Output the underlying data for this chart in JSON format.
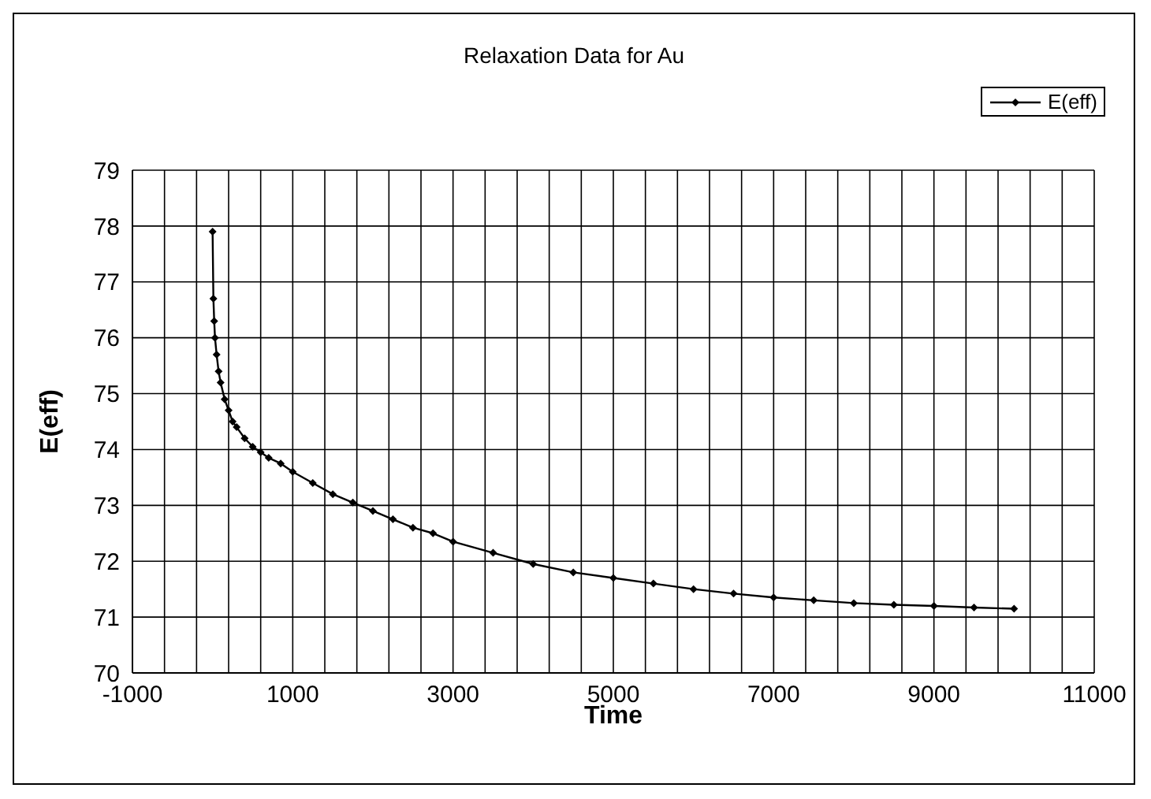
{
  "chart_data": {
    "type": "line",
    "title": "Relaxation Data for Au",
    "xlabel": "Time",
    "ylabel": "E(eff)",
    "x": [
      0,
      10,
      20,
      30,
      50,
      75,
      100,
      150,
      200,
      250,
      300,
      400,
      500,
      600,
      700,
      850,
      1000,
      1250,
      1500,
      1750,
      2000,
      2250,
      2500,
      2750,
      3000,
      3500,
      4000,
      4500,
      5000,
      5500,
      6000,
      6500,
      7000,
      7500,
      8000,
      8500,
      9000,
      9500,
      10000
    ],
    "series": [
      {
        "name": "E(eff)",
        "color": "#000000",
        "values": [
          77.9,
          76.7,
          76.3,
          76.0,
          75.7,
          75.4,
          75.2,
          74.9,
          74.7,
          74.5,
          74.4,
          74.2,
          74.05,
          73.95,
          73.85,
          73.75,
          73.6,
          73.4,
          73.2,
          73.05,
          72.9,
          72.75,
          72.6,
          72.5,
          72.35,
          72.15,
          71.95,
          71.8,
          71.7,
          71.6,
          71.5,
          71.42,
          71.35,
          71.3,
          71.25,
          71.22,
          71.2,
          71.17,
          71.15
        ]
      }
    ],
    "xlim": [
      -1000,
      11000
    ],
    "xticks": [
      -1000,
      {
        "value": -600,
        "label": null
      },
      {
        "value": -200,
        "label": null
      },
      {
        "value": 200,
        "label": null
      },
      {
        "value": 600,
        "label": null
      },
      1000,
      {
        "value": 1400,
        "label": null
      },
      {
        "value": 1800,
        "label": null
      },
      {
        "value": 2200,
        "label": null
      },
      {
        "value": 2600,
        "label": null
      },
      3000,
      {
        "value": 3400,
        "label": null
      },
      {
        "value": 3800,
        "label": null
      },
      {
        "value": 4200,
        "label": null
      },
      {
        "value": 4600,
        "label": null
      },
      5000,
      {
        "value": 5400,
        "label": null
      },
      {
        "value": 5800,
        "label": null
      },
      {
        "value": 6200,
        "label": null
      },
      {
        "value": 6600,
        "label": null
      },
      7000,
      {
        "value": 7400,
        "label": null
      },
      {
        "value": 7800,
        "label": null
      },
      {
        "value": 8200,
        "label": null
      },
      {
        "value": 8600,
        "label": null
      },
      9000,
      {
        "value": 9400,
        "label": null
      },
      {
        "value": 9800,
        "label": null
      },
      {
        "value": 10200,
        "label": null
      },
      {
        "value": 10600,
        "label": null
      },
      11000
    ],
    "ylim": [
      70,
      79
    ],
    "yticks": [
      70,
      71,
      72,
      73,
      74,
      75,
      76,
      77,
      78,
      79
    ],
    "grid": true,
    "legend": "top right",
    "marker": "diamond",
    "line_style": "solid"
  }
}
